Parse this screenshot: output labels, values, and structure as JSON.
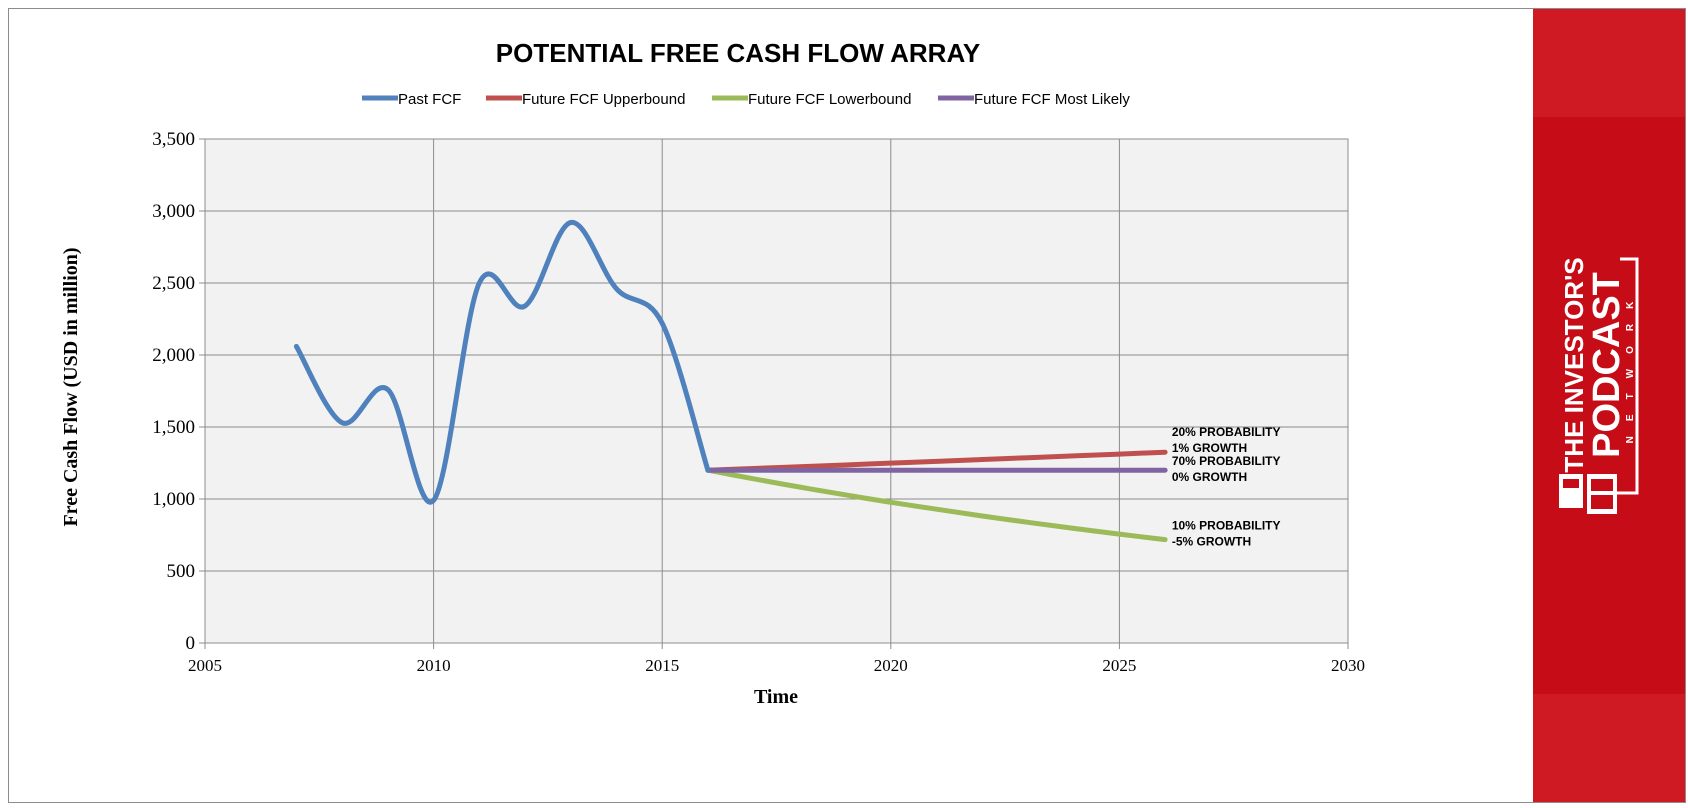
{
  "chart_data": {
    "type": "line",
    "title": "POTENTIAL FREE CASH FLOW ARRAY",
    "xlabel": "Time",
    "ylabel": "Free Cash Flow (USD in million)",
    "xlim": [
      2005,
      2030
    ],
    "ylim": [
      0,
      3500
    ],
    "x_ticks": [
      2005,
      2010,
      2015,
      2020,
      2025,
      2030
    ],
    "y_ticks": [
      0,
      500,
      1000,
      1500,
      2000,
      2500,
      3000,
      3500
    ],
    "x_tick_labels": [
      "2005",
      "2010",
      "2015",
      "2020",
      "2025",
      "2030"
    ],
    "y_tick_labels": [
      "0",
      "500",
      "1,000",
      "1,500",
      "2,000",
      "2,500",
      "3,000",
      "3,500"
    ],
    "grid": true,
    "legend_position": "top",
    "smooth_lines": true,
    "series": [
      {
        "name": "Past FCF",
        "color": "#4f81bd",
        "x": [
          2007,
          2008,
          2009,
          2010,
          2011,
          2012,
          2013,
          2014,
          2015,
          2016
        ],
        "y": [
          2060,
          1530,
          1760,
          990,
          2500,
          2340,
          2920,
          2460,
          2220,
          1200
        ]
      },
      {
        "name": "Future FCF Upperbound",
        "color": "#c0504d",
        "x": [
          2016,
          2017,
          2018,
          2019,
          2020,
          2021,
          2022,
          2023,
          2024,
          2025,
          2026
        ],
        "y": [
          1200,
          1212,
          1224,
          1236,
          1249,
          1261,
          1274,
          1287,
          1299,
          1312,
          1325
        ]
      },
      {
        "name": "Future FCF Lowerbound",
        "color": "#9bbb59",
        "x": [
          2016,
          2017,
          2018,
          2019,
          2020,
          2021,
          2022,
          2023,
          2024,
          2025,
          2026
        ],
        "y": [
          1200,
          1140,
          1083,
          1029,
          977,
          929,
          882,
          838,
          796,
          756,
          718
        ]
      },
      {
        "name": "Future FCF Most Likely",
        "color": "#8064a2",
        "x": [
          2016,
          2017,
          2018,
          2019,
          2020,
          2021,
          2022,
          2023,
          2024,
          2025,
          2026
        ],
        "y": [
          1200,
          1200,
          1200,
          1200,
          1200,
          1200,
          1200,
          1200,
          1200,
          1200,
          1200
        ]
      }
    ],
    "annotations": [
      {
        "lines": [
          "20% PROBABILITY",
          "1% GROWTH"
        ],
        "x": 2026.3,
        "y": 1325
      },
      {
        "lines": [
          "70% PROBABILITY",
          "0% GROWTH"
        ],
        "x": 2026.3,
        "y": 1200
      },
      {
        "lines": [
          "10% PROBABILITY",
          "-5% GROWTH"
        ],
        "x": 2026.3,
        "y": 718
      }
    ]
  },
  "logo": {
    "line1": "THE INVESTOR'S",
    "line2": "PODCAST",
    "line3": "NETWORK"
  },
  "colors": {
    "plot_background": "#f2f2f2",
    "grid": "#8c8c8c",
    "banner": "#c60d17"
  }
}
